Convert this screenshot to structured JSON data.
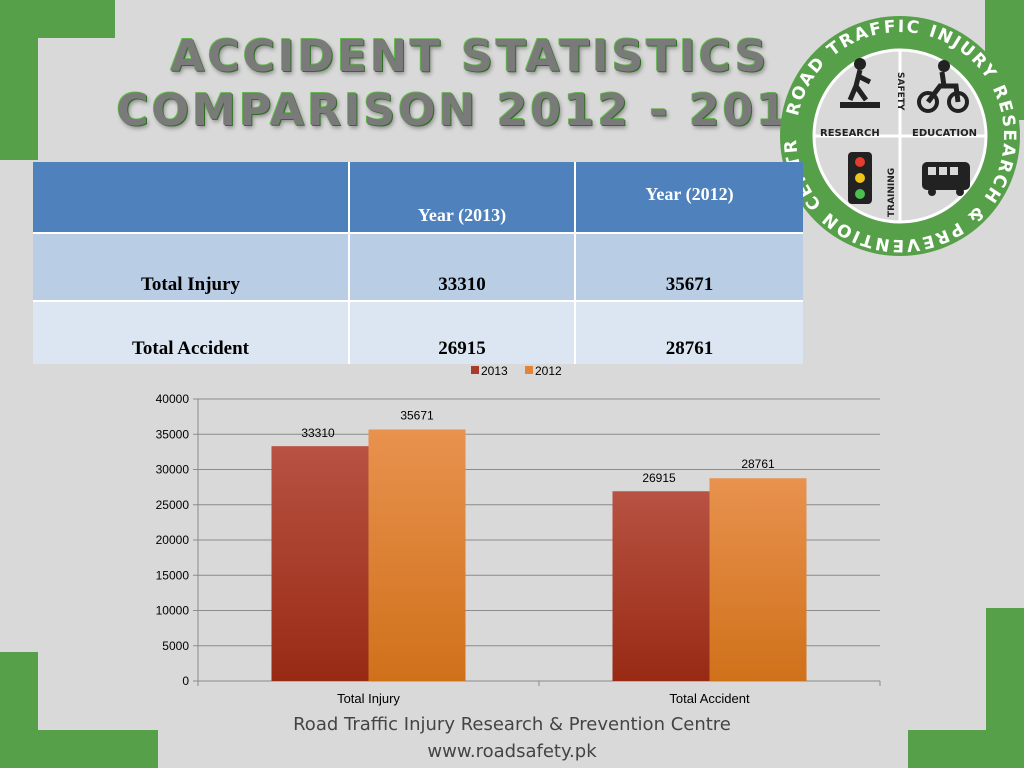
{
  "title": {
    "line1": "ACCIDENT STATISTICS",
    "line2": "COMPARISON 2012 - 2013"
  },
  "logo": {
    "ring_text_top": "ROAD TRAFFIC INJURY RESEARCH & PREVENTION CENTRE",
    "quadrants": [
      "SAFETY",
      "RESEARCH",
      "EDUCATION",
      "TRAINING"
    ]
  },
  "table": {
    "header": [
      "",
      "Year (2013)",
      "Year (2012)"
    ],
    "rows": [
      [
        "Total Injury",
        "33310",
        "35671"
      ],
      [
        "Total Accident",
        "26915",
        "28761"
      ]
    ]
  },
  "chart_data": {
    "type": "bar",
    "categories": [
      "Total Injury",
      "Total Accident"
    ],
    "series": [
      {
        "name": "2013",
        "values": [
          33310,
          26915
        ],
        "color": "#a93c2d"
      },
      {
        "name": "2012",
        "values": [
          35671,
          28761
        ],
        "color": "#e2833a"
      }
    ],
    "ylim": [
      0,
      40000
    ],
    "yticks": [
      "0",
      "5000",
      "10000",
      "15000",
      "20000",
      "25000",
      "30000",
      "35000",
      "40000"
    ],
    "grid": true,
    "legend": "top-center"
  },
  "footer": {
    "line1": "Road Traffic Injury Research & Prevention Centre",
    "line2": "www.roadsafety.pk"
  },
  "colors": {
    "accent_green": "#57a04a",
    "table_header": "#4f81bd",
    "row1": "#b9cde5",
    "row2": "#dce6f2"
  }
}
